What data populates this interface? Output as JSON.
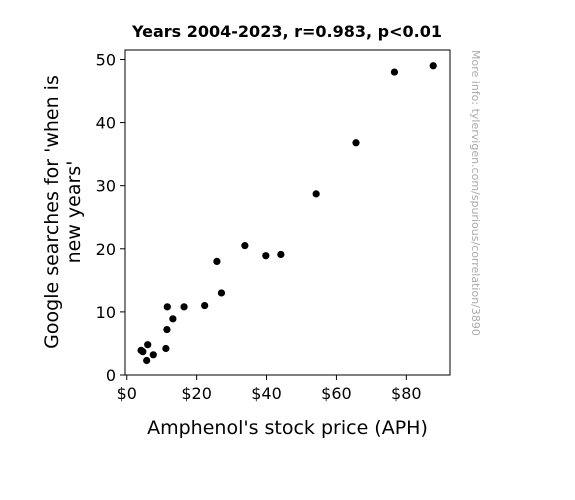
{
  "chart_data": {
    "type": "scatter",
    "title": "Years 2004-2023, r=0.983, p<0.01",
    "xlabel": "Amphenol's stock price (APH)",
    "ylabel_lines": [
      "Google searches for 'when is",
      "new years'"
    ],
    "xlim": [
      -0.5,
      92.5
    ],
    "ylim": [
      0,
      51.5
    ],
    "x_ticks": [
      0,
      20,
      40,
      60,
      80
    ],
    "x_tick_labels": [
      "$0",
      "$20",
      "$40",
      "$60",
      "$80"
    ],
    "y_ticks": [
      0,
      10,
      20,
      30,
      40,
      50
    ],
    "y_tick_labels": [
      "0",
      "10",
      "20",
      "30",
      "40",
      "50"
    ],
    "grid": false,
    "marker_color": "#000000",
    "points": [
      {
        "x": 4.1,
        "y": 3.9
      },
      {
        "x": 4.6,
        "y": 3.7
      },
      {
        "x": 5.7,
        "y": 2.3
      },
      {
        "x": 6.0,
        "y": 4.8
      },
      {
        "x": 7.6,
        "y": 3.2
      },
      {
        "x": 11.2,
        "y": 4.2
      },
      {
        "x": 11.5,
        "y": 7.2
      },
      {
        "x": 11.6,
        "y": 10.8
      },
      {
        "x": 13.2,
        "y": 8.9
      },
      {
        "x": 16.4,
        "y": 10.8
      },
      {
        "x": 22.3,
        "y": 11.0
      },
      {
        "x": 25.8,
        "y": 18.0
      },
      {
        "x": 27.1,
        "y": 13.0
      },
      {
        "x": 33.8,
        "y": 20.5
      },
      {
        "x": 39.8,
        "y": 18.9
      },
      {
        "x": 44.1,
        "y": 19.1
      },
      {
        "x": 54.2,
        "y": 28.7
      },
      {
        "x": 65.6,
        "y": 36.8
      },
      {
        "x": 76.6,
        "y": 48.0
      },
      {
        "x": 87.7,
        "y": 49.0
      }
    ]
  },
  "side_note": "More info: tylervigen.com/spurious/correlation/3890"
}
